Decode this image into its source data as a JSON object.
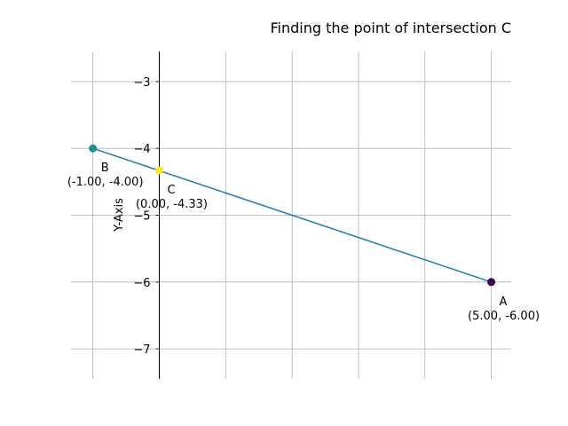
{
  "chart_data": {
    "type": "scatter",
    "title": "Finding the point of intersection C",
    "xlabel": "",
    "ylabel": "Y-Axis",
    "xlim": [
      -1.33,
      5.3
    ],
    "ylim": [
      -7.45,
      -2.55
    ],
    "grid": true,
    "x_ticks": [
      -1,
      0,
      1,
      2,
      3,
      4,
      5
    ],
    "y_ticks": [
      -3,
      -4,
      -5,
      -6,
      -7
    ],
    "y_tick_labels": [
      "−3",
      "−4",
      "−5",
      "−6",
      "−7"
    ],
    "line": {
      "from": [
        -1,
        -4
      ],
      "to": [
        5,
        -6
      ],
      "color": "#1f77b4"
    },
    "points": [
      {
        "id": "A",
        "label": "A",
        "coords": "(5.00, -6.00)",
        "x": 5,
        "y": -6,
        "color": "#440154"
      },
      {
        "id": "B",
        "label": "B",
        "coords": "(-1.00, -4.00)",
        "x": -1,
        "y": -4,
        "color": "#21918c"
      },
      {
        "id": "C",
        "label": "C",
        "coords": "(0.00, -4.33)",
        "x": 0,
        "y": -4.33,
        "color": "#fde725"
      }
    ]
  }
}
